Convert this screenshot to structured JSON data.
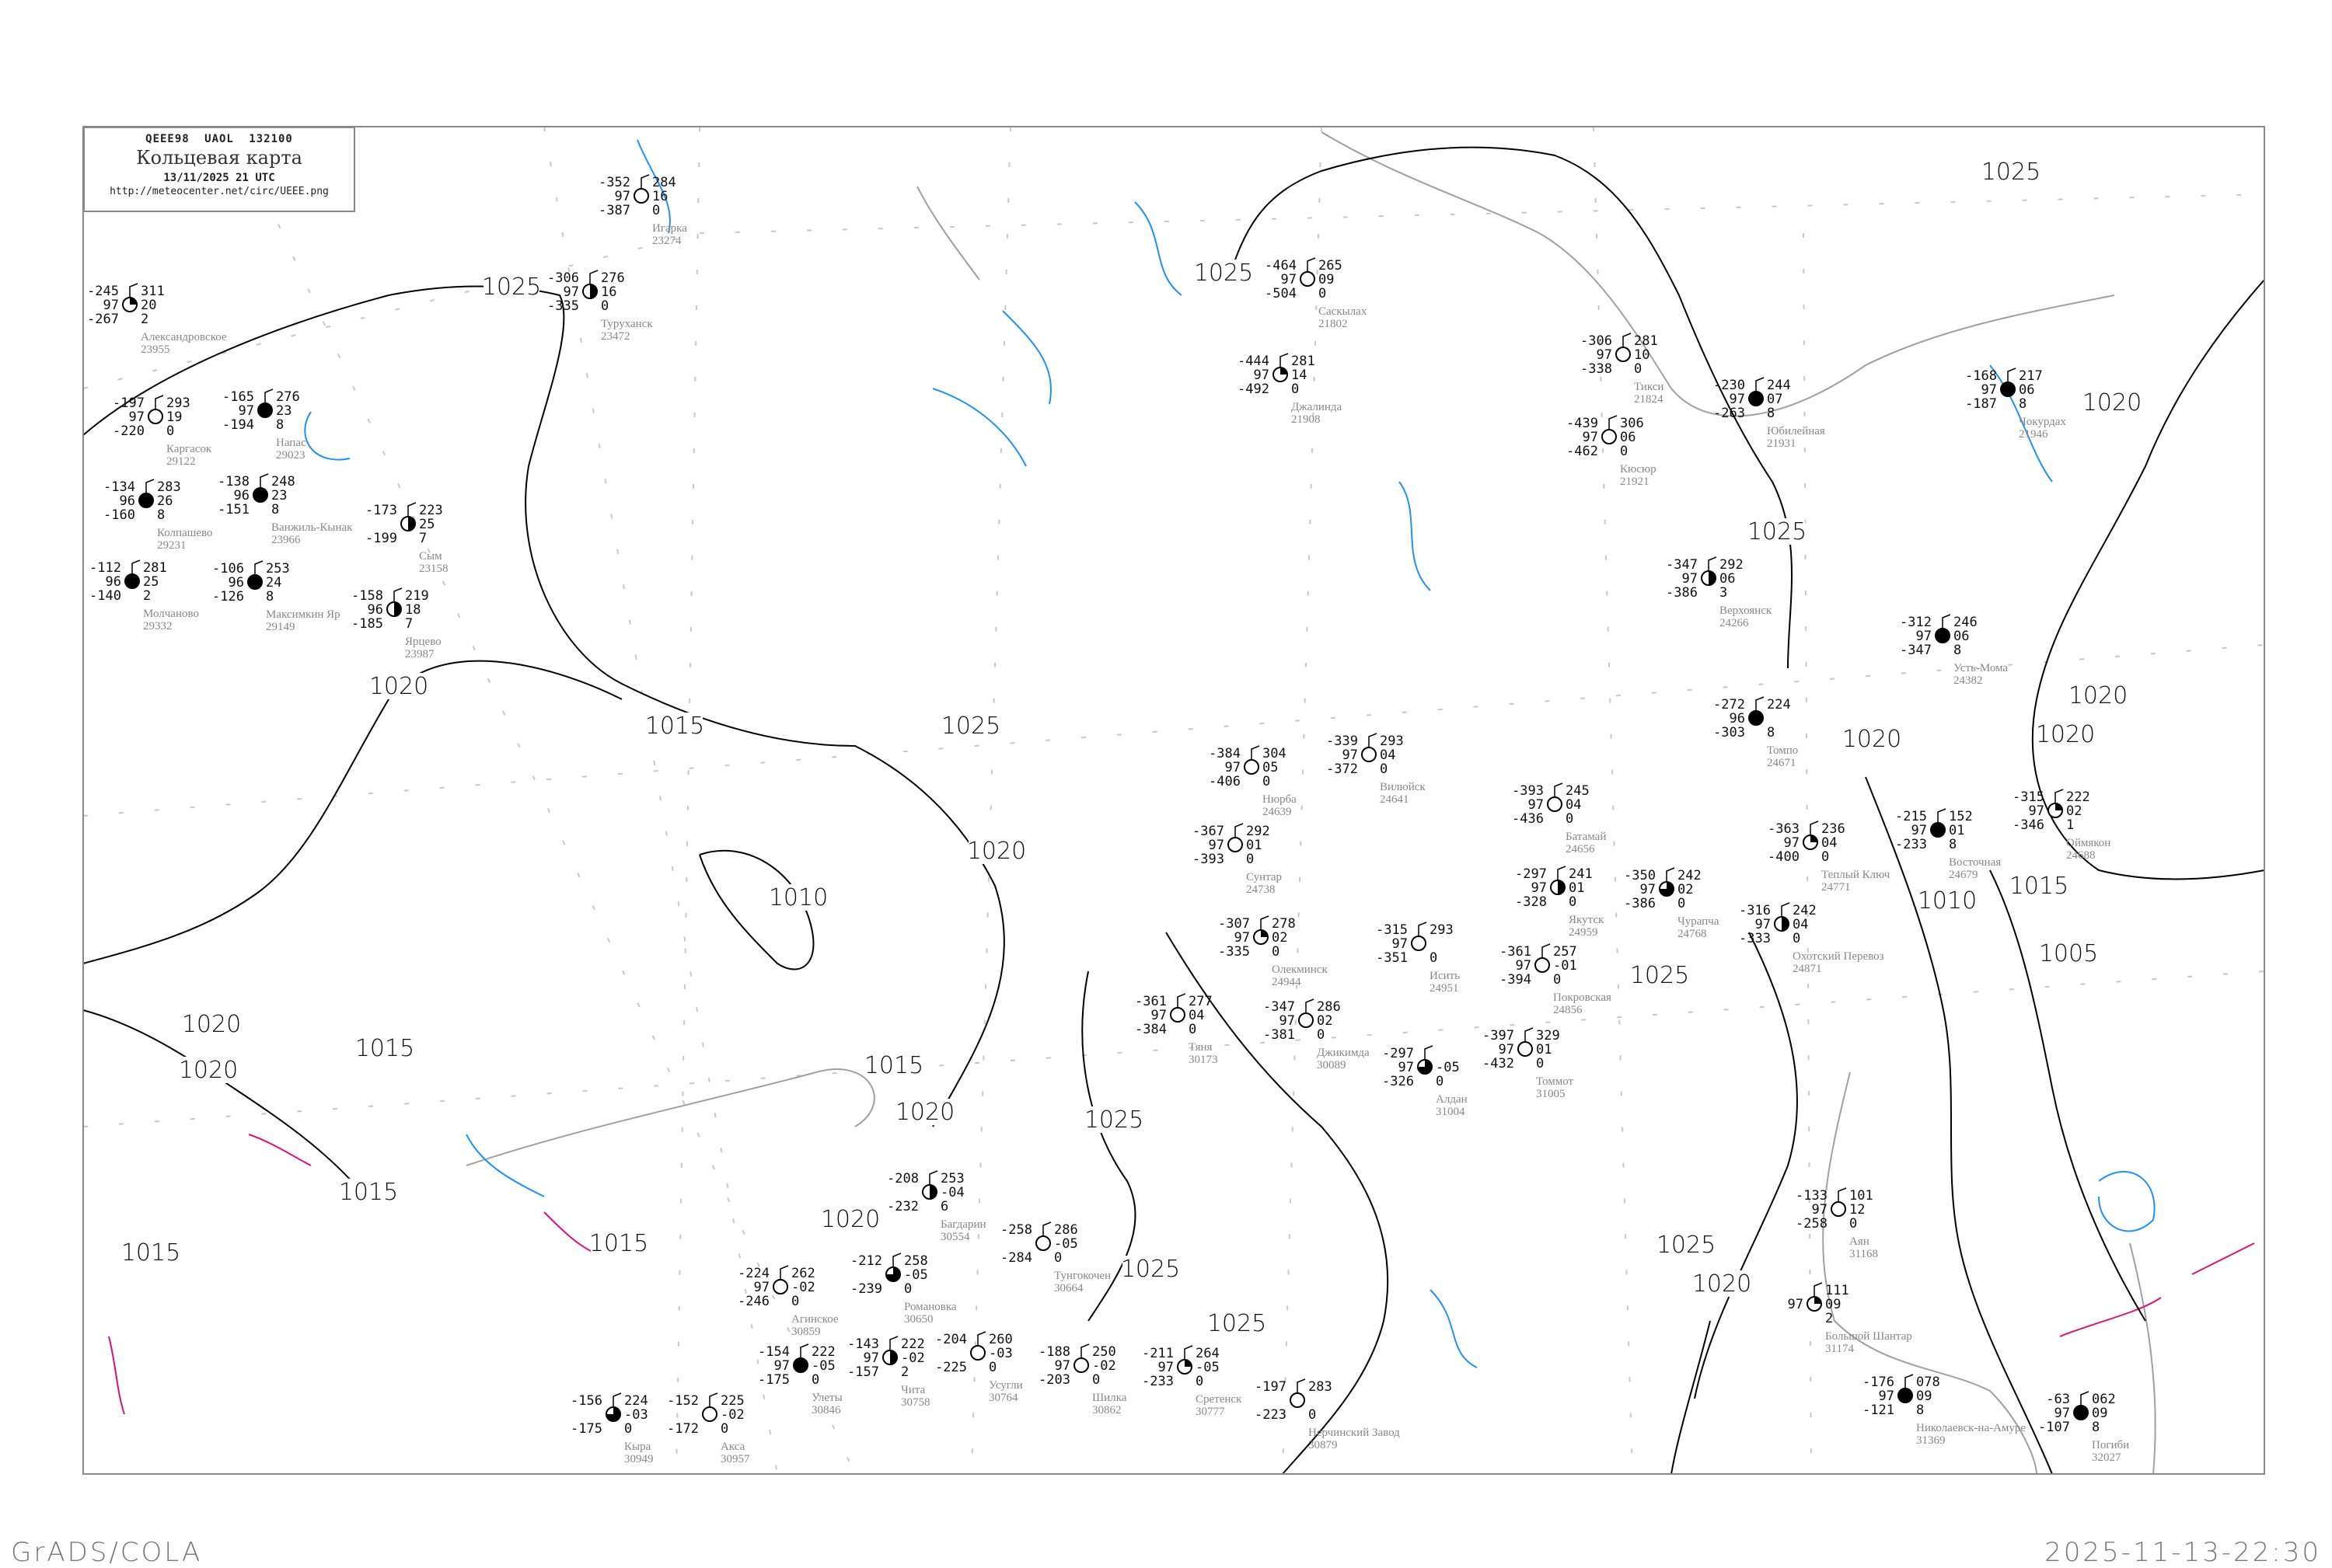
{
  "header": {
    "code_line": "QEEE98  UAOL  132100",
    "title": "Кольцевая карта",
    "date": "13/11/2025 21 UTC",
    "url": "http://meteocenter.net/circ/UEEE.png"
  },
  "footer": {
    "left": "GrADS/COLA",
    "right": "2025-11-13-22:30"
  },
  "colors": {
    "isobar": "#000000",
    "isotherm_cold": "#1e90ff",
    "isotherm_warm": "#e0107a",
    "coastline": "#a0a0a0",
    "grid": "#c8c8c8",
    "station_name": "#888888",
    "snow_cover_marker": "#3a8ee6"
  },
  "isobar_labels": [
    "1025",
    "1025",
    "1025",
    "1020",
    "1025",
    "1020",
    "1015",
    "1025",
    "1020",
    "1010",
    "1015",
    "1020",
    "1025",
    "1020",
    "1025",
    "1025",
    "1020",
    "1015",
    "1010",
    "1005",
    "1020",
    "1020",
    "1020",
    "1025",
    "1015",
    "1015",
    "1020",
    "1020",
    "1015",
    "1015",
    "1025"
  ],
  "stations": [
    {
      "name": "Игарка",
      "id": "23274",
      "t": "-352",
      "vis": "97",
      "td": "-387",
      "p": "284",
      "dp": "16",
      "r": "0",
      "cover": 0
    },
    {
      "name": "Туруханск",
      "id": "23472",
      "t": "-306",
      "vis": "97",
      "td": "-335",
      "p": "276",
      "dp": "16",
      "r": "0",
      "cover": 0.5
    },
    {
      "name": "Саскылах",
      "id": "21802",
      "t": "-464",
      "vis": "97",
      "td": "-504",
      "p": "265",
      "dp": "09",
      "r": "0",
      "cover": 0
    },
    {
      "name": "Джалинда",
      "id": "21908",
      "t": "-444",
      "vis": "97",
      "td": "-492",
      "p": "281",
      "dp": "14",
      "r": "0",
      "cover": 0.25
    },
    {
      "name": "Тикси",
      "id": "21824",
      "t": "-306",
      "vis": "97",
      "td": "-338",
      "p": "281",
      "dp": "10",
      "r": "0",
      "cover": 0
    },
    {
      "name": "Кюсюр",
      "id": "21921",
      "t": "-439",
      "vis": "97",
      "td": "-462",
      "p": "306",
      "dp": "06",
      "r": "0",
      "cover": 0
    },
    {
      "name": "Юбилейная",
      "id": "21931",
      "t": "-230",
      "vis": "97",
      "td": "-263",
      "p": "244",
      "dp": "07",
      "r": "8",
      "cover": 1
    },
    {
      "name": "Чокурдах",
      "id": "21946",
      "t": "-168",
      "vis": "97",
      "td": "-187",
      "p": "217",
      "dp": "06",
      "r": "8",
      "cover": 1
    },
    {
      "name": "Верхоянск",
      "id": "24266",
      "t": "-347",
      "vis": "97",
      "td": "-386",
      "p": "292",
      "dp": "06",
      "r": "3",
      "cover": 0.5
    },
    {
      "name": "Усть-Мома",
      "id": "24382",
      "t": "-312",
      "vis": "97",
      "td": "-347",
      "p": "246",
      "dp": "06",
      "r": "8",
      "cover": 1
    },
    {
      "name": "Томпо",
      "id": "24671",
      "t": "-272",
      "vis": "96",
      "td": "-303",
      "p": "224",
      "dp": "",
      "r": "8",
      "cover": 1
    },
    {
      "name": "Теплый Ключ",
      "id": "24771",
      "t": "-363",
      "vis": "97",
      "td": "-400",
      "p": "236",
      "dp": "04",
      "r": "0",
      "cover": 0.25
    },
    {
      "name": "Восточная",
      "id": "24679",
      "t": "-215",
      "vis": "97",
      "td": "-233",
      "p": "152",
      "dp": "01",
      "r": "8",
      "cover": 1
    },
    {
      "name": "Оймякон",
      "id": "24688",
      "t": "-315",
      "vis": "97",
      "td": "-346",
      "p": "222",
      "dp": "02",
      "r": "1",
      "cover": 0.25
    },
    {
      "name": "Якутск",
      "id": "24959",
      "t": "-297",
      "vis": "97",
      "td": "-328",
      "p": "241",
      "dp": "01",
      "r": "0",
      "cover": 0.5
    },
    {
      "name": "Покровская",
      "id": "24856",
      "t": "-361",
      "vis": "97",
      "td": "-394",
      "p": "257",
      "dp": "-01",
      "r": "0",
      "cover": 0
    },
    {
      "name": "Чурапча",
      "id": "24768",
      "t": "-350",
      "vis": "97",
      "td": "-386",
      "p": "242",
      "dp": "02",
      "r": "0",
      "cover": 0.75
    },
    {
      "name": "Охотский Перевоз",
      "id": "24871",
      "t": "-316",
      "vis": "97",
      "td": "-333",
      "p": "242",
      "dp": "04",
      "r": "0",
      "cover": 0.5
    },
    {
      "name": "Батамай",
      "id": "24656",
      "t": "-393",
      "vis": "97",
      "td": "-436",
      "p": "245",
      "dp": "04",
      "r": "0",
      "cover": 0
    },
    {
      "name": "Нюрба",
      "id": "24639",
      "t": "-384",
      "vis": "97",
      "td": "-406",
      "p": "304",
      "dp": "05",
      "r": "0",
      "cover": 0
    },
    {
      "name": "Вилюйск",
      "id": "24641",
      "t": "-339",
      "vis": "97",
      "td": "-372",
      "p": "293",
      "dp": "04",
      "r": "0",
      "cover": 0
    },
    {
      "name": "Сунтар",
      "id": "24738",
      "t": "-367",
      "vis": "97",
      "td": "-393",
      "p": "292",
      "dp": "01",
      "r": "0",
      "cover": 0
    },
    {
      "name": "Олекминск",
      "id": "24944",
      "t": "-307",
      "vis": "97",
      "td": "-335",
      "p": "278",
      "dp": "02",
      "r": "0",
      "cover": 0.25
    },
    {
      "name": "Исить",
      "id": "24951",
      "t": "-315",
      "vis": "97",
      "td": "-351",
      "p": "293",
      "dp": "",
      "r": "0",
      "cover": 0
    },
    {
      "name": "Тяня",
      "id": "30173",
      "t": "-361",
      "vis": "97",
      "td": "-384",
      "p": "277",
      "dp": "04",
      "r": "0",
      "cover": 0
    },
    {
      "name": "Джикимда",
      "id": "30089",
      "t": "-347",
      "vis": "97",
      "td": "-381",
      "p": "286",
      "dp": "02",
      "r": "0",
      "cover": 0
    },
    {
      "name": "Алдан",
      "id": "31004",
      "t": "-297",
      "vis": "97",
      "td": "-326",
      "p": "",
      "dp": "-05",
      "r": "0",
      "cover": 0.75
    },
    {
      "name": "Томмот",
      "id": "31005",
      "t": "-397",
      "vis": "97",
      "td": "-432",
      "p": "329",
      "dp": "01",
      "r": "0",
      "cover": 0
    },
    {
      "name": "Аян",
      "id": "31168",
      "t": "-133",
      "vis": "97",
      "td": "-258",
      "p": "101",
      "dp": "12",
      "r": "0",
      "cover": 0
    },
    {
      "name": "Большой Шантар",
      "id": "31174",
      "t": "",
      "vis": "97",
      "td": "",
      "p": "111",
      "dp": "09",
      "r": "2",
      "cover": 0.25
    },
    {
      "name": "Николаевск-на-Амуре",
      "id": "31369",
      "t": "-176",
      "vis": "97",
      "td": "-121",
      "p": "078",
      "dp": "09",
      "r": "8",
      "cover": 1
    },
    {
      "name": "Погиби",
      "id": "32027",
      "t": "-63",
      "vis": "97",
      "td": "-107",
      "p": "062",
      "dp": "09",
      "r": "8",
      "cover": 1
    },
    {
      "name": "Александровское",
      "id": "23955",
      "t": "-245",
      "vis": "97",
      "td": "-267",
      "p": "311",
      "dp": "20",
      "r": "2",
      "cover": 0.25
    },
    {
      "name": "Каргасок",
      "id": "29122",
      "t": "-197",
      "vis": "97",
      "td": "-220",
      "p": "293",
      "dp": "19",
      "r": "0",
      "cover": 0
    },
    {
      "name": "Напас",
      "id": "29023",
      "t": "-165",
      "vis": "97",
      "td": "-194",
      "p": "276",
      "dp": "23",
      "r": "8",
      "cover": 1
    },
    {
      "name": "Ванжиль-Кынак",
      "id": "23966",
      "t": "-138",
      "vis": "96",
      "td": "-151",
      "p": "248",
      "dp": "23",
      "r": "8",
      "cover": 1
    },
    {
      "name": "Колпашево",
      "id": "29231",
      "t": "-134",
      "vis": "96",
      "td": "-160",
      "p": "283",
      "dp": "26",
      "r": "8",
      "cover": 1
    },
    {
      "name": "Молчаново",
      "id": "29332",
      "t": "-112",
      "vis": "96",
      "td": "-140",
      "p": "281",
      "dp": "25",
      "r": "2",
      "cover": 1
    },
    {
      "name": "Максимкин Яр",
      "id": "29149",
      "t": "-106",
      "vis": "96",
      "td": "-126",
      "p": "253",
      "dp": "24",
      "r": "8",
      "cover": 1
    },
    {
      "name": "Сым",
      "id": "23158",
      "t": "-173",
      "vis": "",
      "td": "-199",
      "p": "223",
      "dp": "25",
      "r": "7",
      "cover": 0.5
    },
    {
      "name": "Ярцево",
      "id": "23987",
      "t": "-158",
      "vis": "96",
      "td": "-185",
      "p": "219",
      "dp": "18",
      "r": "7",
      "cover": 0.5
    },
    {
      "name": "Багдарин",
      "id": "30554",
      "t": "-208",
      "vis": "",
      "td": "-232",
      "p": "253",
      "dp": "-04",
      "r": "6",
      "cover": 0.5
    },
    {
      "name": "Романовка",
      "id": "30650",
      "t": "-212",
      "vis": "",
      "td": "-239",
      "p": "258",
      "dp": "-05",
      "r": "0",
      "cover": 0.75
    },
    {
      "name": "Тунгокочен",
      "id": "30664",
      "t": "-258",
      "vis": "",
      "td": "-284",
      "p": "286",
      "dp": "-05",
      "r": "0",
      "cover": 0
    },
    {
      "name": "Чита",
      "id": "30758",
      "t": "-143",
      "vis": "97",
      "td": "-157",
      "p": "222",
      "dp": "-02",
      "r": "2",
      "cover": 0.5
    },
    {
      "name": "Усугли",
      "id": "30764",
      "t": "-204",
      "vis": "",
      "td": "-225",
      "p": "260",
      "dp": "-03",
      "r": "0",
      "cover": 0
    },
    {
      "name": "Улеты",
      "id": "30846",
      "t": "-154",
      "vis": "97",
      "td": "-175",
      "p": "222",
      "dp": "-05",
      "r": "0",
      "cover": 1
    },
    {
      "name": "Шилка",
      "id": "30862",
      "t": "-188",
      "vis": "97",
      "td": "-203",
      "p": "250",
      "dp": "-02",
      "r": "0",
      "cover": 0
    },
    {
      "name": "Сретенск",
      "id": "30777",
      "t": "-211",
      "vis": "97",
      "td": "-233",
      "p": "264",
      "dp": "-05",
      "r": "0",
      "cover": 0.25
    },
    {
      "name": "Агинское",
      "id": "30859",
      "t": "-224",
      "vis": "97",
      "td": "-246",
      "p": "262",
      "dp": "-02",
      "r": "0",
      "cover": 0
    },
    {
      "name": "Акса",
      "id": "30957",
      "t": "-152",
      "vis": "",
      "td": "-172",
      "p": "225",
      "dp": "-02",
      "r": "0",
      "cover": 0
    },
    {
      "name": "Кыра",
      "id": "30949",
      "t": "-156",
      "vis": "",
      "td": "-175",
      "p": "224",
      "dp": "-03",
      "r": "0",
      "cover": 0.75
    },
    {
      "name": "Нерчинский Завод",
      "id": "30879",
      "t": "-197",
      "vis": "",
      "td": "-223",
      "p": "283",
      "dp": "",
      "r": "0",
      "cover": 0
    }
  ]
}
